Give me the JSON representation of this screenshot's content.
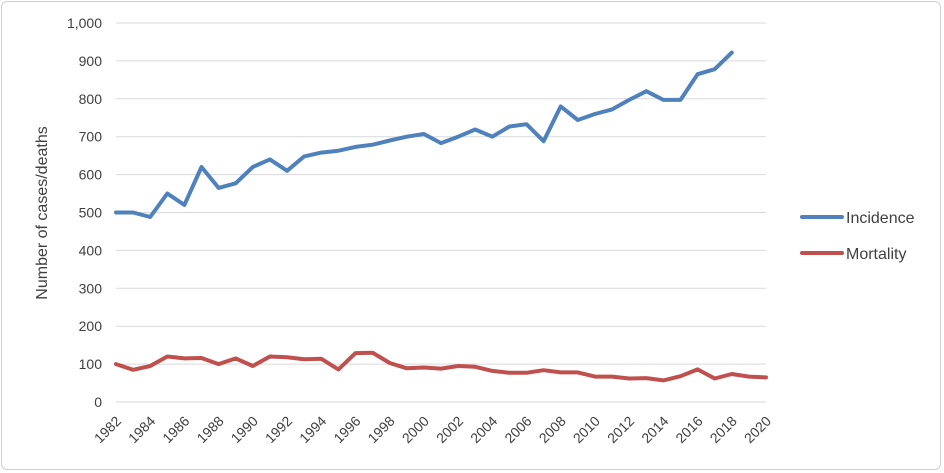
{
  "chart_data": {
    "type": "line",
    "title": "",
    "xlabel": "",
    "ylabel": "Number of cases/deaths",
    "ylim": [
      0,
      1000
    ],
    "yticks": [
      0,
      100,
      200,
      300,
      400,
      500,
      600,
      700,
      800,
      900,
      1000
    ],
    "ytick_labels": [
      "0",
      "100",
      "200",
      "300",
      "400",
      "500",
      "600",
      "700",
      "800",
      "900",
      "1,000"
    ],
    "xlim": [
      1982,
      2020
    ],
    "xticks": [
      "1982",
      "1984",
      "1986",
      "1988",
      "1990",
      "1992",
      "1994",
      "1996",
      "1998",
      "2000",
      "2002",
      "2004",
      "2006",
      "2008",
      "2010",
      "2012",
      "2014",
      "2016",
      "2018",
      "2020"
    ],
    "grid": true,
    "legend_position": "right",
    "series": [
      {
        "name": "Incidence",
        "color": "#4F81BD",
        "x": [
          1982,
          1983,
          1984,
          1985,
          1986,
          1987,
          1988,
          1989,
          1990,
          1991,
          1992,
          1993,
          1994,
          1995,
          1996,
          1997,
          1998,
          1999,
          2000,
          2001,
          2002,
          2003,
          2004,
          2005,
          2006,
          2007,
          2008,
          2009,
          2010,
          2011,
          2012,
          2013,
          2014,
          2015,
          2016,
          2017,
          2018
        ],
        "values": [
          500,
          500,
          488,
          550,
          520,
          620,
          565,
          577,
          620,
          640,
          610,
          648,
          658,
          663,
          673,
          679,
          690,
          700,
          707,
          683,
          700,
          719,
          700,
          727,
          733,
          688,
          780,
          744,
          760,
          772,
          797,
          820,
          797,
          797,
          865,
          878,
          922
        ]
      },
      {
        "name": "Mortality",
        "color": "#C0504D",
        "x": [
          1982,
          1983,
          1984,
          1985,
          1986,
          1987,
          1988,
          1989,
          1990,
          1991,
          1992,
          1993,
          1994,
          1995,
          1996,
          1997,
          1998,
          1999,
          2000,
          2001,
          2002,
          2003,
          2004,
          2005,
          2006,
          2007,
          2008,
          2009,
          2010,
          2011,
          2012,
          2013,
          2014,
          2015,
          2016,
          2017,
          2018,
          2019,
          2020
        ],
        "values": [
          100,
          85,
          95,
          120,
          115,
          116,
          100,
          115,
          95,
          120,
          118,
          113,
          114,
          86,
          129,
          130,
          103,
          89,
          91,
          88,
          95,
          93,
          82,
          77,
          77,
          84,
          78,
          78,
          67,
          67,
          62,
          63,
          57,
          68,
          86,
          62,
          74,
          67,
          65
        ]
      }
    ]
  }
}
